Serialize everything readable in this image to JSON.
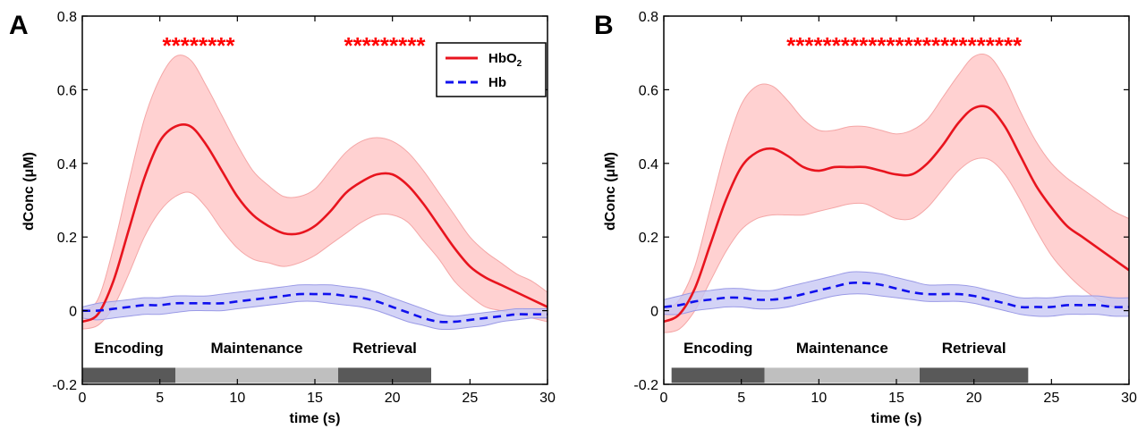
{
  "colors": {
    "hbo2_line": "#e8141e",
    "hbo2_band": "#ffcccc",
    "hbo2_band_edge": "#f4a6a6",
    "hb_line": "#1010ee",
    "hb_band": "#c8c8f4",
    "hb_band_edge": "#9a9ae6",
    "encoding_bar": "#595959",
    "maintenance_bar": "#bfbfbf",
    "retrieval_bar": "#595959",
    "stars": "#ff0000"
  },
  "chart_data": [
    {
      "panel": "A",
      "type": "line",
      "xlabel": "time (s)",
      "ylabel": "dConc (μM)",
      "xlim": [
        0,
        30
      ],
      "ylim": [
        -0.2,
        0.8
      ],
      "xticks": [
        0,
        5,
        10,
        15,
        20,
        25,
        30
      ],
      "yticks": [
        -0.2,
        0,
        0.2,
        0.4,
        0.6,
        0.8
      ],
      "ytick_labels": [
        "-0.2",
        "0",
        "0.2",
        "0.4",
        "0.6",
        "0.8"
      ],
      "grid": false,
      "legend": {
        "placement": "top-right",
        "entries": [
          "HbO",
          "Hb"
        ],
        "hbo2_subscript": "2"
      },
      "series": [
        {
          "name": "HbO2",
          "style": "solid",
          "x": [
            0,
            1,
            2,
            3,
            4,
            5,
            6,
            7,
            8,
            9,
            10,
            11,
            12,
            13,
            14,
            15,
            16,
            17,
            18,
            19,
            20,
            21,
            22,
            23,
            24,
            25,
            26,
            27,
            28,
            29,
            30
          ],
          "y": [
            -0.03,
            -0.01,
            0.08,
            0.22,
            0.36,
            0.46,
            0.5,
            0.5,
            0.45,
            0.38,
            0.31,
            0.26,
            0.23,
            0.21,
            0.21,
            0.23,
            0.27,
            0.32,
            0.35,
            0.37,
            0.37,
            0.34,
            0.29,
            0.23,
            0.17,
            0.12,
            0.09,
            0.07,
            0.05,
            0.03,
            0.01
          ],
          "lower": [
            -0.05,
            -0.04,
            0.01,
            0.1,
            0.2,
            0.27,
            0.31,
            0.32,
            0.28,
            0.22,
            0.17,
            0.14,
            0.13,
            0.12,
            0.13,
            0.15,
            0.18,
            0.21,
            0.24,
            0.26,
            0.26,
            0.24,
            0.19,
            0.14,
            0.08,
            0.04,
            0.01,
            0.0,
            -0.01,
            -0.02,
            -0.03
          ],
          "upper": [
            0.0,
            0.03,
            0.17,
            0.35,
            0.52,
            0.63,
            0.69,
            0.68,
            0.61,
            0.53,
            0.45,
            0.38,
            0.34,
            0.31,
            0.31,
            0.33,
            0.38,
            0.43,
            0.46,
            0.47,
            0.46,
            0.43,
            0.38,
            0.32,
            0.26,
            0.2,
            0.16,
            0.13,
            0.1,
            0.08,
            0.05
          ]
        },
        {
          "name": "Hb",
          "style": "dashed",
          "x": [
            0,
            1,
            2,
            3,
            4,
            5,
            6,
            7,
            8,
            9,
            10,
            11,
            12,
            13,
            14,
            15,
            16,
            17,
            18,
            19,
            20,
            21,
            22,
            23,
            24,
            25,
            26,
            27,
            28,
            29,
            30
          ],
          "y": [
            0.0,
            0.0,
            0.005,
            0.01,
            0.015,
            0.015,
            0.02,
            0.02,
            0.02,
            0.02,
            0.025,
            0.03,
            0.035,
            0.04,
            0.045,
            0.045,
            0.045,
            0.04,
            0.035,
            0.025,
            0.01,
            -0.005,
            -0.02,
            -0.03,
            -0.03,
            -0.025,
            -0.02,
            -0.015,
            -0.01,
            -0.01,
            -0.01
          ],
          "lower": [
            -0.02,
            -0.025,
            -0.02,
            -0.015,
            -0.01,
            -0.01,
            -0.005,
            0.0,
            0.0,
            0.0,
            0.005,
            0.01,
            0.015,
            0.02,
            0.025,
            0.025,
            0.02,
            0.015,
            0.01,
            0.0,
            -0.015,
            -0.03,
            -0.04,
            -0.05,
            -0.05,
            -0.045,
            -0.04,
            -0.03,
            -0.025,
            -0.02,
            -0.02
          ],
          "upper": [
            0.01,
            0.02,
            0.025,
            0.03,
            0.035,
            0.035,
            0.04,
            0.04,
            0.04,
            0.045,
            0.05,
            0.055,
            0.06,
            0.065,
            0.07,
            0.07,
            0.07,
            0.065,
            0.06,
            0.05,
            0.035,
            0.02,
            0.005,
            -0.01,
            -0.015,
            -0.01,
            -0.005,
            0.0,
            0.005,
            0.005,
            0.005
          ]
        }
      ],
      "significance_marks": [
        {
          "text": "********",
          "x_center": 7.5
        },
        {
          "text": "*********",
          "x_center": 19.5
        }
      ],
      "phases": [
        {
          "label": "Encoding",
          "start": 0,
          "end": 6,
          "color_key": "encoding_bar"
        },
        {
          "label": "Maintenance",
          "start": 6,
          "end": 16.5,
          "color_key": "maintenance_bar"
        },
        {
          "label": "Retrieval",
          "start": 16.5,
          "end": 22.5,
          "color_key": "retrieval_bar"
        }
      ]
    },
    {
      "panel": "B",
      "type": "line",
      "xlabel": "time (s)",
      "ylabel": "dConc (μM)",
      "xlim": [
        0,
        30
      ],
      "ylim": [
        -0.2,
        0.8
      ],
      "xticks": [
        0,
        5,
        10,
        15,
        20,
        25,
        30
      ],
      "yticks": [
        -0.2,
        0,
        0.2,
        0.4,
        0.6,
        0.8
      ],
      "ytick_labels": [
        "-0.2",
        "0",
        "0.2",
        "0.4",
        "0.6",
        "0.8"
      ],
      "grid": false,
      "series": [
        {
          "name": "HbO2",
          "style": "solid",
          "x": [
            0,
            1,
            2,
            3,
            4,
            5,
            6,
            7,
            8,
            9,
            10,
            11,
            12,
            13,
            14,
            15,
            16,
            17,
            18,
            19,
            20,
            21,
            22,
            23,
            24,
            25,
            26,
            27,
            28,
            29,
            30
          ],
          "y": [
            -0.03,
            -0.01,
            0.06,
            0.18,
            0.3,
            0.39,
            0.43,
            0.44,
            0.42,
            0.39,
            0.38,
            0.39,
            0.39,
            0.39,
            0.38,
            0.37,
            0.37,
            0.4,
            0.45,
            0.51,
            0.55,
            0.55,
            0.5,
            0.42,
            0.34,
            0.28,
            0.23,
            0.2,
            0.17,
            0.14,
            0.11
          ],
          "lower": [
            -0.06,
            -0.05,
            0.0,
            0.08,
            0.16,
            0.22,
            0.25,
            0.26,
            0.26,
            0.26,
            0.27,
            0.28,
            0.29,
            0.29,
            0.27,
            0.25,
            0.25,
            0.28,
            0.33,
            0.38,
            0.41,
            0.41,
            0.37,
            0.3,
            0.22,
            0.15,
            0.1,
            0.06,
            0.03,
            0.01,
            0.0
          ],
          "upper": [
            0.0,
            0.03,
            0.12,
            0.28,
            0.44,
            0.56,
            0.61,
            0.61,
            0.57,
            0.52,
            0.49,
            0.49,
            0.5,
            0.5,
            0.49,
            0.48,
            0.49,
            0.52,
            0.58,
            0.64,
            0.69,
            0.69,
            0.63,
            0.54,
            0.46,
            0.4,
            0.36,
            0.33,
            0.3,
            0.27,
            0.25
          ]
        },
        {
          "name": "Hb",
          "style": "dashed",
          "x": [
            0,
            1,
            2,
            3,
            4,
            5,
            6,
            7,
            8,
            9,
            10,
            11,
            12,
            13,
            14,
            15,
            16,
            17,
            18,
            19,
            20,
            21,
            22,
            23,
            24,
            25,
            26,
            27,
            28,
            29,
            30
          ],
          "y": [
            0.01,
            0.015,
            0.025,
            0.03,
            0.035,
            0.035,
            0.03,
            0.03,
            0.035,
            0.045,
            0.055,
            0.065,
            0.075,
            0.075,
            0.07,
            0.06,
            0.05,
            0.045,
            0.045,
            0.045,
            0.04,
            0.03,
            0.02,
            0.01,
            0.01,
            0.01,
            0.015,
            0.015,
            0.015,
            0.01,
            0.01
          ],
          "lower": [
            -0.01,
            -0.01,
            0.0,
            0.005,
            0.01,
            0.01,
            0.005,
            0.005,
            0.01,
            0.02,
            0.03,
            0.04,
            0.045,
            0.045,
            0.04,
            0.035,
            0.03,
            0.025,
            0.025,
            0.025,
            0.02,
            0.01,
            0.0,
            -0.01,
            -0.015,
            -0.015,
            -0.01,
            -0.01,
            -0.01,
            -0.015,
            -0.015
          ],
          "upper": [
            0.03,
            0.04,
            0.05,
            0.055,
            0.06,
            0.06,
            0.055,
            0.055,
            0.065,
            0.075,
            0.085,
            0.095,
            0.105,
            0.105,
            0.1,
            0.09,
            0.08,
            0.07,
            0.07,
            0.07,
            0.065,
            0.055,
            0.045,
            0.035,
            0.035,
            0.035,
            0.04,
            0.04,
            0.04,
            0.035,
            0.035
          ]
        }
      ],
      "significance_marks": [
        {
          "text": "**************************",
          "x_center": 15.5
        }
      ],
      "phases": [
        {
          "label": "Encoding",
          "start": 0.5,
          "end": 6.5,
          "color_key": "encoding_bar"
        },
        {
          "label": "Maintenance",
          "start": 6.5,
          "end": 16.5,
          "color_key": "maintenance_bar"
        },
        {
          "label": "Retrieval",
          "start": 16.5,
          "end": 23.5,
          "color_key": "retrieval_bar"
        }
      ]
    }
  ]
}
